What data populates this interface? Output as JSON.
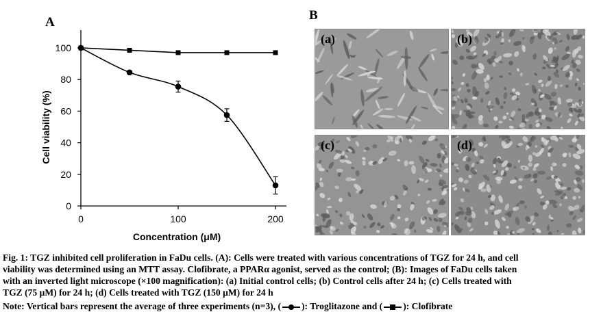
{
  "panel_a_label": "A",
  "panel_b_label": "B",
  "chart_data": {
    "type": "line",
    "xlabel": "Concentration (μM)",
    "ylabel": "Cell viability  (%)",
    "xlim": [
      0,
      210
    ],
    "ylim": [
      0,
      110
    ],
    "x_ticks": [
      0,
      100,
      200
    ],
    "y_ticks": [
      0,
      20,
      40,
      60,
      80,
      100
    ],
    "grid": false,
    "series": [
      {
        "name": "Troglitazone",
        "marker": "circle",
        "color": "#000000",
        "x": [
          0,
          50,
          100,
          150,
          200
        ],
        "y": [
          100,
          84.5,
          75.5,
          57.5,
          13
        ],
        "error": [
          0,
          1,
          3.5,
          4,
          5.5
        ]
      },
      {
        "name": "Clofibrate",
        "marker": "square",
        "color": "#000000",
        "x": [
          0,
          50,
          100,
          150,
          200
        ],
        "y": [
          100,
          98.5,
          97,
          97,
          97
        ],
        "error": [
          0,
          0,
          0,
          0,
          0
        ]
      }
    ]
  },
  "micrographs": [
    {
      "label": "(a)",
      "description_tone": "#9a9a9a"
    },
    {
      "label": "(b)",
      "description_tone": "#8e8e8e"
    },
    {
      "label": "(c)",
      "description_tone": "#949494"
    },
    {
      "label": "(d)",
      "description_tone": "#8c8c8c"
    }
  ],
  "caption": {
    "line1": "Fig. 1: TGZ inhibited cell proliferation in FaDu cells. (A): Cells were treated with various concentrations of TGZ for 24 h, and cell",
    "line2": "viability was determined using an MTT assay. Clofibrate, a PPARα agonist, served as the control; (B): Images of FaDu cells taken",
    "line3": "with an inverted light microscope (×100 magnification): (a) Initial control cells; (b) Control cells after 24 h; (c) Cells treated with",
    "line4": "TGZ (75 μM) for 24 h; (d) Cells treated with TGZ (150 μM) for 24 h",
    "note_prefix": "Note: Vertical bars represent the average of three experiments (n=3), (",
    "note_mid": "): Troglitazone and (",
    "note_suffix": "): Clofibrate"
  }
}
